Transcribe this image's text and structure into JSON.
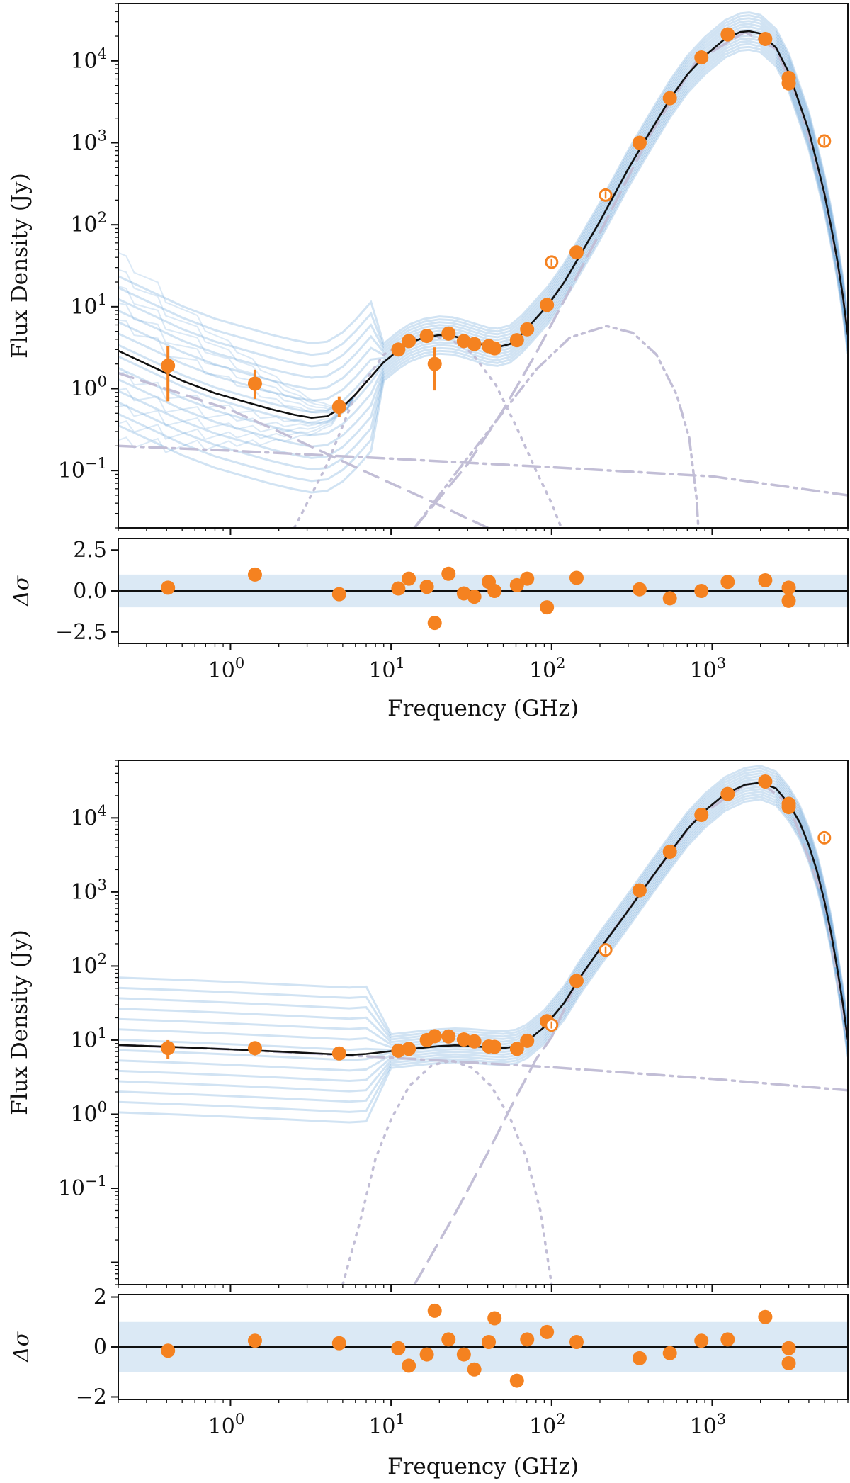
{
  "colors": {
    "data": "#f58220",
    "model": "#111111",
    "samples": "#5b9bd5",
    "band": "#dbe9f5",
    "component": "#c2bed6"
  },
  "chart_data": [
    {
      "type": "scatter",
      "name": "top-panel",
      "ylabel": "Flux Density (Jy)",
      "resid_ylabel": "Δσ",
      "xlabel": "Frequency (GHz)",
      "xscale": "log",
      "yscale": "log",
      "xlim": [
        0.2,
        7000
      ],
      "ylim": [
        0.02,
        50000
      ],
      "x_ticks": [
        "10^0",
        "10^1",
        "10^2",
        "10^3"
      ],
      "y_ticks": [
        "10^-1",
        "10^0",
        "10^1",
        "10^2",
        "10^3",
        "10^4"
      ],
      "resid_ylim": [
        -3.2,
        3.2
      ],
      "resid_ticks": [
        "−2.5",
        "0.0",
        "2.5"
      ],
      "points": [
        {
          "x": 0.408,
          "y": 1.9,
          "ylo": 0.7,
          "yhi": 3.3
        },
        {
          "x": 1.42,
          "y": 1.15,
          "ylo": 0.75,
          "yhi": 1.7
        },
        {
          "x": 4.75,
          "y": 0.6,
          "ylo": 0.45,
          "yhi": 0.8
        },
        {
          "x": 11.1,
          "y": 3.0
        },
        {
          "x": 12.9,
          "y": 3.8
        },
        {
          "x": 16.7,
          "y": 4.4
        },
        {
          "x": 18.7,
          "y": 2.0,
          "ylo": 0.95,
          "yhi": 3.2
        },
        {
          "x": 22.8,
          "y": 4.7
        },
        {
          "x": 28.4,
          "y": 3.8
        },
        {
          "x": 33.0,
          "y": 3.5
        },
        {
          "x": 40.6,
          "y": 3.3
        },
        {
          "x": 44.1,
          "y": 3.1
        },
        {
          "x": 60.8,
          "y": 3.9
        },
        {
          "x": 70.4,
          "y": 5.3
        },
        {
          "x": 93.5,
          "y": 10.5
        },
        {
          "x": 143,
          "y": 46
        },
        {
          "x": 353,
          "y": 1000
        },
        {
          "x": 545,
          "y": 3500
        },
        {
          "x": 857,
          "y": 11000
        },
        {
          "x": 1249,
          "y": 21000
        },
        {
          "x": 2141,
          "y": 18500
        },
        {
          "x": 2998,
          "y": 6200
        },
        {
          "x": 2998,
          "y": 5300
        }
      ],
      "excluded_points": [
        {
          "x": 100,
          "y": 35
        },
        {
          "x": 217,
          "y": 230
        },
        {
          "x": 4997,
          "y": 1050
        }
      ],
      "model": [
        [
          0.2,
          2.9
        ],
        [
          0.3,
          2.0
        ],
        [
          0.5,
          1.25
        ],
        [
          0.8,
          0.88
        ],
        [
          1.2,
          0.7
        ],
        [
          1.8,
          0.56
        ],
        [
          2.5,
          0.48
        ],
        [
          3.2,
          0.44
        ],
        [
          4.0,
          0.46
        ],
        [
          5.0,
          0.6
        ],
        [
          6.0,
          0.85
        ],
        [
          7.5,
          1.4
        ],
        [
          9.0,
          2.1
        ],
        [
          11,
          2.9
        ],
        [
          13,
          3.6
        ],
        [
          16,
          4.2
        ],
        [
          20,
          4.5
        ],
        [
          24,
          4.4
        ],
        [
          28,
          4.1
        ],
        [
          33,
          3.7
        ],
        [
          40,
          3.3
        ],
        [
          46,
          3.2
        ],
        [
          55,
          3.5
        ],
        [
          65,
          4.6
        ],
        [
          80,
          7.2
        ],
        [
          95,
          10.5
        ],
        [
          120,
          20
        ],
        [
          150,
          42
        ],
        [
          200,
          110
        ],
        [
          300,
          480
        ],
        [
          400,
          1250
        ],
        [
          550,
          3500
        ],
        [
          700,
          6800
        ],
        [
          900,
          11500
        ],
        [
          1200,
          18500
        ],
        [
          1500,
          22500
        ],
        [
          1700,
          23000
        ],
        [
          2000,
          21500
        ],
        [
          2500,
          14500
        ],
        [
          3000,
          7200
        ],
        [
          3500,
          3000
        ],
        [
          4000,
          1400
        ],
        [
          4500,
          560
        ],
        [
          5000,
          240
        ],
        [
          5500,
          95
        ],
        [
          6000,
          38
        ],
        [
          6500,
          14
        ],
        [
          7000,
          4.5
        ]
      ],
      "components": {
        "synchrotron_dashed": [
          [
            0.2,
            1.55
          ],
          [
            1,
            0.55
          ],
          [
            2,
            0.3
          ],
          [
            5,
            0.13
          ],
          [
            10,
            0.07
          ],
          [
            20,
            0.038
          ],
          [
            30,
            0.026
          ],
          [
            40,
            0.02
          ]
        ],
        "freefree_dashdot": [
          [
            0.2,
            0.2
          ],
          [
            1,
            0.175
          ],
          [
            10,
            0.14
          ],
          [
            100,
            0.11
          ],
          [
            1000,
            0.085
          ],
          [
            7000,
            0.05
          ]
        ],
        "ame_dotted": [
          [
            2.5,
            0.02
          ],
          [
            4,
            0.12
          ],
          [
            6,
            0.85
          ],
          [
            9,
            2.6
          ],
          [
            13,
            4.0
          ],
          [
            18,
            4.4
          ],
          [
            24,
            3.9
          ],
          [
            32,
            2.7
          ],
          [
            45,
            1.1
          ],
          [
            60,
            0.35
          ],
          [
            80,
            0.1
          ],
          [
            100,
            0.04
          ],
          [
            115,
            0.02
          ]
        ],
        "dust_dashed": [
          [
            14,
            0.02
          ],
          [
            30,
            0.12
          ],
          [
            50,
            0.55
          ],
          [
            80,
            2.7
          ],
          [
            120,
            12
          ],
          [
            200,
            80
          ],
          [
            400,
            1150
          ],
          [
            800,
            10000
          ],
          [
            1600,
            22500
          ],
          [
            2500,
            14000
          ],
          [
            3500,
            3000
          ],
          [
            5000,
            240
          ],
          [
            6500,
            14
          ],
          [
            7000,
            5
          ]
        ],
        "cold_dust_dashdotdot": [
          [
            14,
            0.02
          ],
          [
            25,
            0.09
          ],
          [
            45,
            0.4
          ],
          [
            80,
            1.7
          ],
          [
            130,
            4.2
          ],
          [
            220,
            5.8
          ],
          [
            320,
            4.8
          ],
          [
            450,
            2.6
          ],
          [
            600,
            0.85
          ],
          [
            720,
            0.25
          ],
          [
            800,
            0.045
          ],
          [
            820,
            0.02
          ]
        ]
      },
      "residuals": [
        {
          "x": 0.408,
          "y": 0.2
        },
        {
          "x": 1.42,
          "y": 1.0
        },
        {
          "x": 4.75,
          "y": -0.2
        },
        {
          "x": 11.1,
          "y": 0.15
        },
        {
          "x": 12.9,
          "y": 0.75
        },
        {
          "x": 16.7,
          "y": 0.25
        },
        {
          "x": 18.7,
          "y": -1.95
        },
        {
          "x": 22.8,
          "y": 1.05
        },
        {
          "x": 28.4,
          "y": -0.15
        },
        {
          "x": 33.0,
          "y": -0.35
        },
        {
          "x": 40.6,
          "y": 0.55
        },
        {
          "x": 44.1,
          "y": 0.0
        },
        {
          "x": 60.8,
          "y": 0.35
        },
        {
          "x": 70.4,
          "y": 0.75
        },
        {
          "x": 93.5,
          "y": -1.0
        },
        {
          "x": 143,
          "y": 0.8
        },
        {
          "x": 353,
          "y": 0.1
        },
        {
          "x": 545,
          "y": -0.45
        },
        {
          "x": 857,
          "y": 0.0
        },
        {
          "x": 1249,
          "y": 0.55
        },
        {
          "x": 2141,
          "y": 0.65
        },
        {
          "x": 2998,
          "y": 0.2
        },
        {
          "x": 2998,
          "y": -0.6
        }
      ]
    },
    {
      "type": "scatter",
      "name": "bottom-panel",
      "ylabel": "Flux Density (Jy)",
      "resid_ylabel": "Δσ",
      "xlabel": "Frequency (GHz)",
      "xscale": "log",
      "yscale": "log",
      "xlim": [
        0.2,
        7000
      ],
      "ylim": [
        0.005,
        60000
      ],
      "x_ticks": [
        "10^0",
        "10^1",
        "10^2",
        "10^3"
      ],
      "y_ticks": [
        "10^-1",
        "10^0",
        "10^1",
        "10^2",
        "10^3",
        "10^4"
      ],
      "resid_ylim": [
        -2.1,
        2.1
      ],
      "resid_ticks": [
        "−2",
        "0",
        "2"
      ],
      "points": [
        {
          "x": 0.408,
          "y": 7.8,
          "ylo": 5.6,
          "yhi": 10.0
        },
        {
          "x": 1.42,
          "y": 7.8,
          "ylo": 6.2,
          "yhi": 9.6
        },
        {
          "x": 4.75,
          "y": 6.6
        },
        {
          "x": 11.1,
          "y": 7.2
        },
        {
          "x": 12.9,
          "y": 7.6
        },
        {
          "x": 16.7,
          "y": 10.0
        },
        {
          "x": 18.7,
          "y": 11.3
        },
        {
          "x": 22.8,
          "y": 11.2
        },
        {
          "x": 28.4,
          "y": 10.2
        },
        {
          "x": 33.0,
          "y": 9.6
        },
        {
          "x": 40.6,
          "y": 8.2
        },
        {
          "x": 44.1,
          "y": 8.1
        },
        {
          "x": 60.8,
          "y": 7.6
        },
        {
          "x": 70.4,
          "y": 9.8
        },
        {
          "x": 93.5,
          "y": 18.0
        },
        {
          "x": 143,
          "y": 63
        },
        {
          "x": 353,
          "y": 1050
        },
        {
          "x": 545,
          "y": 3500
        },
        {
          "x": 857,
          "y": 11000
        },
        {
          "x": 1249,
          "y": 21000
        },
        {
          "x": 2141,
          "y": 31000
        },
        {
          "x": 2998,
          "y": 15500
        },
        {
          "x": 2998,
          "y": 14000
        }
      ],
      "excluded_points": [
        {
          "x": 100,
          "y": 16
        },
        {
          "x": 217,
          "y": 165
        },
        {
          "x": 4997,
          "y": 5400
        }
      ],
      "model": [
        [
          0.2,
          8.6
        ],
        [
          0.5,
          8.0
        ],
        [
          1,
          7.5
        ],
        [
          2,
          7.0
        ],
        [
          4,
          6.5
        ],
        [
          5.5,
          6.3
        ],
        [
          7,
          6.5
        ],
        [
          10,
          7.1
        ],
        [
          15,
          7.8
        ],
        [
          20,
          8.3
        ],
        [
          25,
          8.5
        ],
        [
          30,
          8.4
        ],
        [
          40,
          8.0
        ],
        [
          50,
          7.8
        ],
        [
          60,
          8.2
        ],
        [
          70,
          9.6
        ],
        [
          90,
          15
        ],
        [
          120,
          32
        ],
        [
          150,
          70
        ],
        [
          200,
          170
        ],
        [
          300,
          560
        ],
        [
          400,
          1350
        ],
        [
          550,
          3500
        ],
        [
          700,
          7000
        ],
        [
          900,
          12500
        ],
        [
          1200,
          21000
        ],
        [
          1600,
          28000
        ],
        [
          2000,
          30000
        ],
        [
          2500,
          25000
        ],
        [
          3000,
          15500
        ],
        [
          3500,
          8800
        ],
        [
          4000,
          4300
        ],
        [
          4500,
          1900
        ],
        [
          5000,
          750
        ],
        [
          5500,
          280
        ],
        [
          6000,
          95
        ],
        [
          6500,
          32
        ],
        [
          7000,
          10
        ]
      ],
      "components": {
        "freefree_dashdot": [
          [
            0.2,
            8.6
          ],
          [
            1,
            7.5
          ],
          [
            10,
            5.8
          ],
          [
            100,
            4.3
          ],
          [
            1000,
            3.0
          ],
          [
            7000,
            2.1
          ]
        ],
        "ame_dotted": [
          [
            5,
            0.005
          ],
          [
            6.5,
            0.04
          ],
          [
            8,
            0.25
          ],
          [
            10,
            0.85
          ],
          [
            13,
            2.4
          ],
          [
            18,
            4.6
          ],
          [
            24,
            5.3
          ],
          [
            32,
            4.2
          ],
          [
            42,
            2.4
          ],
          [
            55,
            0.9
          ],
          [
            70,
            0.25
          ],
          [
            85,
            0.05
          ],
          [
            100,
            0.005
          ]
        ],
        "dust_dashed": [
          [
            14,
            0.005
          ],
          [
            25,
            0.045
          ],
          [
            40,
            0.3
          ],
          [
            60,
            1.7
          ],
          [
            80,
            5.5
          ],
          [
            100,
            11
          ],
          [
            140,
            55
          ],
          [
            200,
            170
          ],
          [
            400,
            1350
          ],
          [
            800,
            10000
          ],
          [
            1600,
            28000
          ],
          [
            2000,
            30000
          ],
          [
            3000,
            15500
          ],
          [
            5000,
            750
          ],
          [
            7000,
            10
          ]
        ]
      },
      "residuals": [
        {
          "x": 0.408,
          "y": -0.15
        },
        {
          "x": 1.42,
          "y": 0.25
        },
        {
          "x": 4.75,
          "y": 0.15
        },
        {
          "x": 11.1,
          "y": -0.05
        },
        {
          "x": 12.9,
          "y": -0.75
        },
        {
          "x": 16.7,
          "y": -0.3
        },
        {
          "x": 18.7,
          "y": 1.45
        },
        {
          "x": 22.8,
          "y": 0.3
        },
        {
          "x": 28.4,
          "y": -0.3
        },
        {
          "x": 33.0,
          "y": -0.9
        },
        {
          "x": 40.6,
          "y": 0.2
        },
        {
          "x": 44.1,
          "y": 1.15
        },
        {
          "x": 60.8,
          "y": -1.35
        },
        {
          "x": 70.4,
          "y": 0.3
        },
        {
          "x": 93.5,
          "y": 0.6
        },
        {
          "x": 143,
          "y": 0.2
        },
        {
          "x": 353,
          "y": -0.45
        },
        {
          "x": 545,
          "y": -0.25
        },
        {
          "x": 857,
          "y": 0.25
        },
        {
          "x": 1249,
          "y": 0.3
        },
        {
          "x": 2141,
          "y": 1.2
        },
        {
          "x": 2998,
          "y": -0.05
        },
        {
          "x": 2998,
          "y": -0.65
        }
      ]
    }
  ]
}
